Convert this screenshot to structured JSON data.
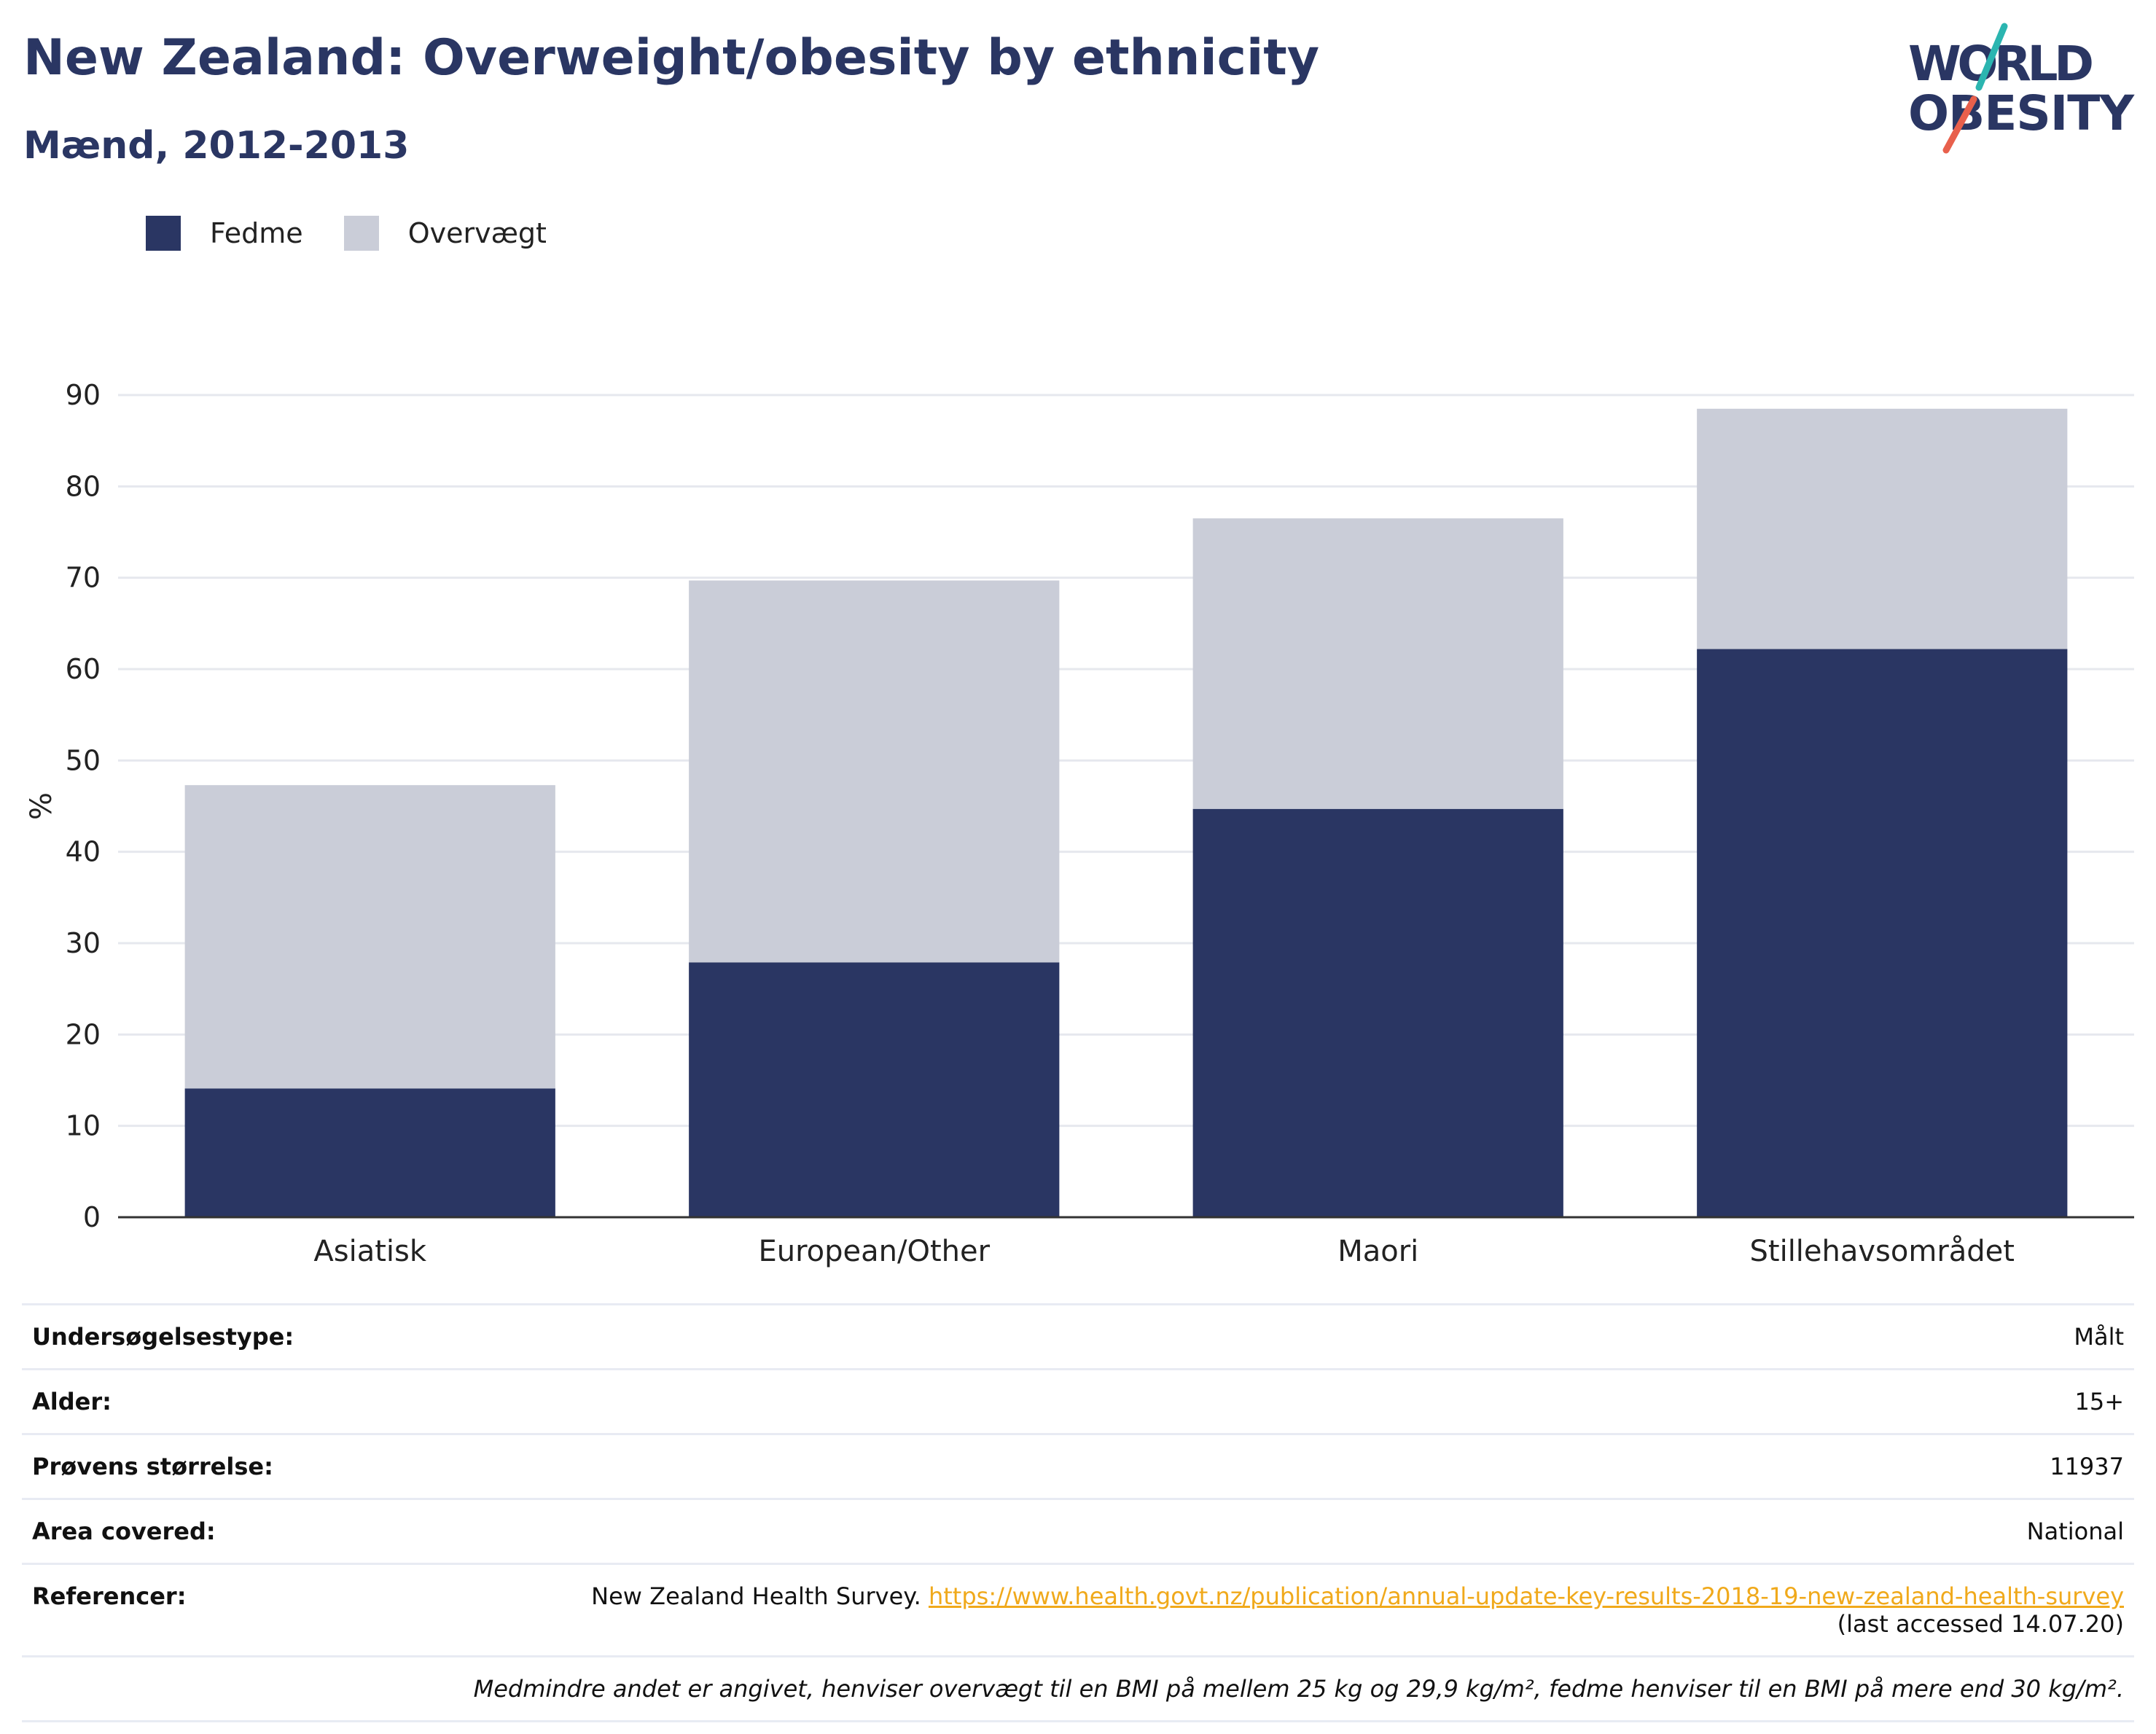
{
  "header": {
    "title": "New Zealand: Overweight/obesity by ethnicity",
    "subtitle": "Mænd, 2012-2013"
  },
  "logo": {
    "line1": "WORLD",
    "line2": "OBESITY",
    "colors": {
      "text": "#2a3663",
      "accent_teal": "#2bb5b0",
      "accent_red": "#e8604c"
    }
  },
  "colors": {
    "obesity": "#2a3663",
    "overweight": "#cacdd8",
    "grid": "#e6e8ee",
    "axis": "#333333",
    "link": "#f0a91b"
  },
  "chart_data": {
    "type": "bar",
    "stacked": true,
    "categories": [
      "Asiatisk",
      "European/Other",
      "Maori",
      "Stillehavsområdet"
    ],
    "series": [
      {
        "name": "Fedme",
        "color": "#2a3663",
        "values": [
          14.1,
          27.9,
          44.7,
          62.2
        ]
      },
      {
        "name": "Overvægt",
        "color": "#cacdd8",
        "values": [
          33.2,
          41.8,
          31.8,
          26.3
        ]
      }
    ],
    "ylabel": "%",
    "xlabel": "",
    "ylim": [
      0,
      90
    ],
    "yticks": [
      0,
      10,
      20,
      30,
      40,
      50,
      60,
      70,
      80,
      90
    ],
    "grid": true,
    "legend_position": "top-left"
  },
  "info": {
    "rows": [
      {
        "label": "Undersøgelsestype:",
        "value": "Målt"
      },
      {
        "label": "Alder:",
        "value": "15+"
      },
      {
        "label": "Prøvens størrelse:",
        "value": "11937"
      },
      {
        "label": "Area covered:",
        "value": "National"
      }
    ],
    "references": {
      "label": "Referencer:",
      "source": "New Zealand Health Survey.",
      "url": "https://www.health.govt.nz/publication/annual-update-key-results-2018-19-new-zealand-health-survey",
      "accessed": "(last accessed 14.07.20)"
    },
    "note": "Medmindre andet er angivet, henviser overvægt til en BMI på mellem 25 kg og 29,9 kg/m², fedme henviser til en BMI på mere end 30 kg/m²."
  }
}
